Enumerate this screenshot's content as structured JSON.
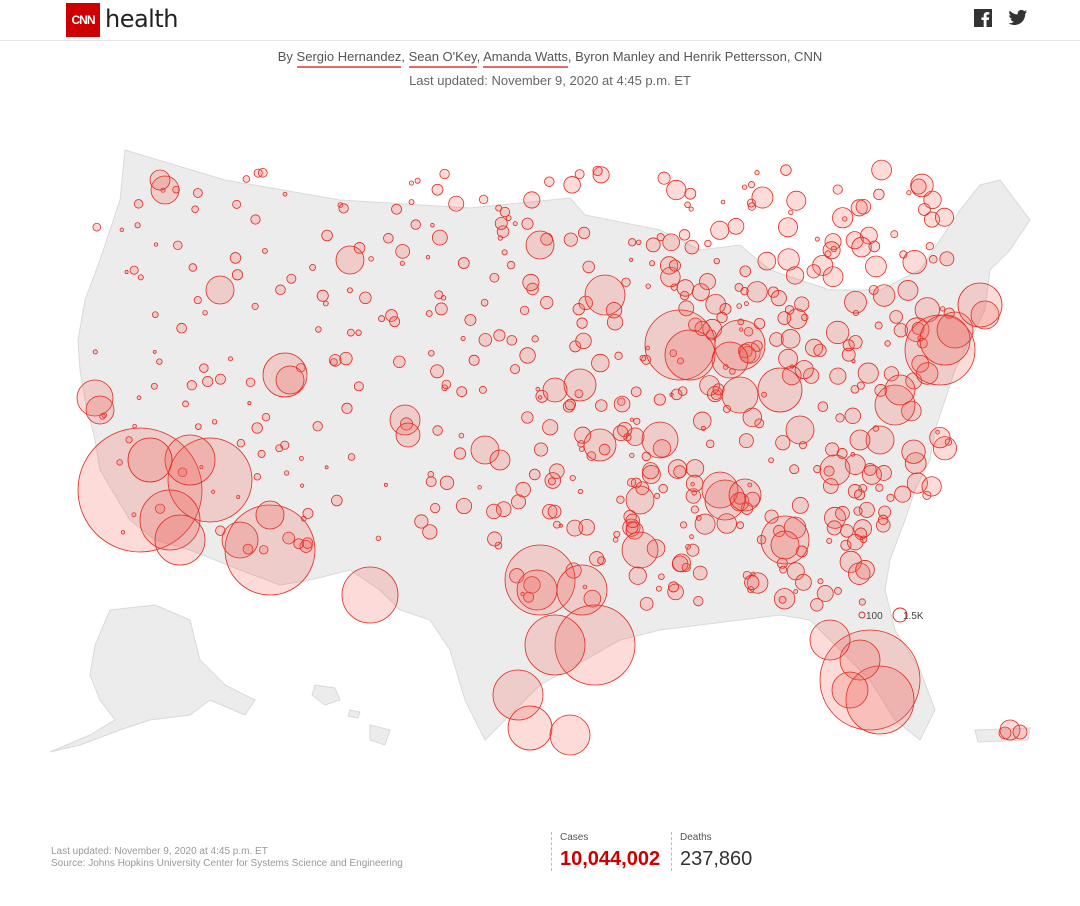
{
  "header": {
    "logo_text": "CNN",
    "section": "health",
    "social": [
      "facebook-icon",
      "twitter-icon"
    ]
  },
  "byline": {
    "prefix": "By ",
    "authors_linked": [
      "Sergio Hernandez",
      "Sean O'Key",
      "Amanda Watts"
    ],
    "authors_rest": "Byron Manley and Henrik Pettersson, CNN"
  },
  "updated": "Last updated: November 9, 2020 at 4:45 p.m. ET",
  "legend": {
    "small_label": "100",
    "large_label": "1.5K",
    "circle_color": "#e8281e"
  },
  "footer": {
    "updated": "Last updated: November 9, 2020 at 4:45 p.m. ET",
    "source": "Source: Johns Hopkins University Center for Systems Science and Engineering"
  },
  "stats": {
    "cases_label": "Cases",
    "cases_value": "10,044,002",
    "deaths_label": "Deaths",
    "deaths_value": "237,860"
  },
  "colors": {
    "brand": "#cc0000",
    "land": "#ececec",
    "bubble_fill": "#f05a50",
    "bubble_stroke": "#e02a20"
  }
}
